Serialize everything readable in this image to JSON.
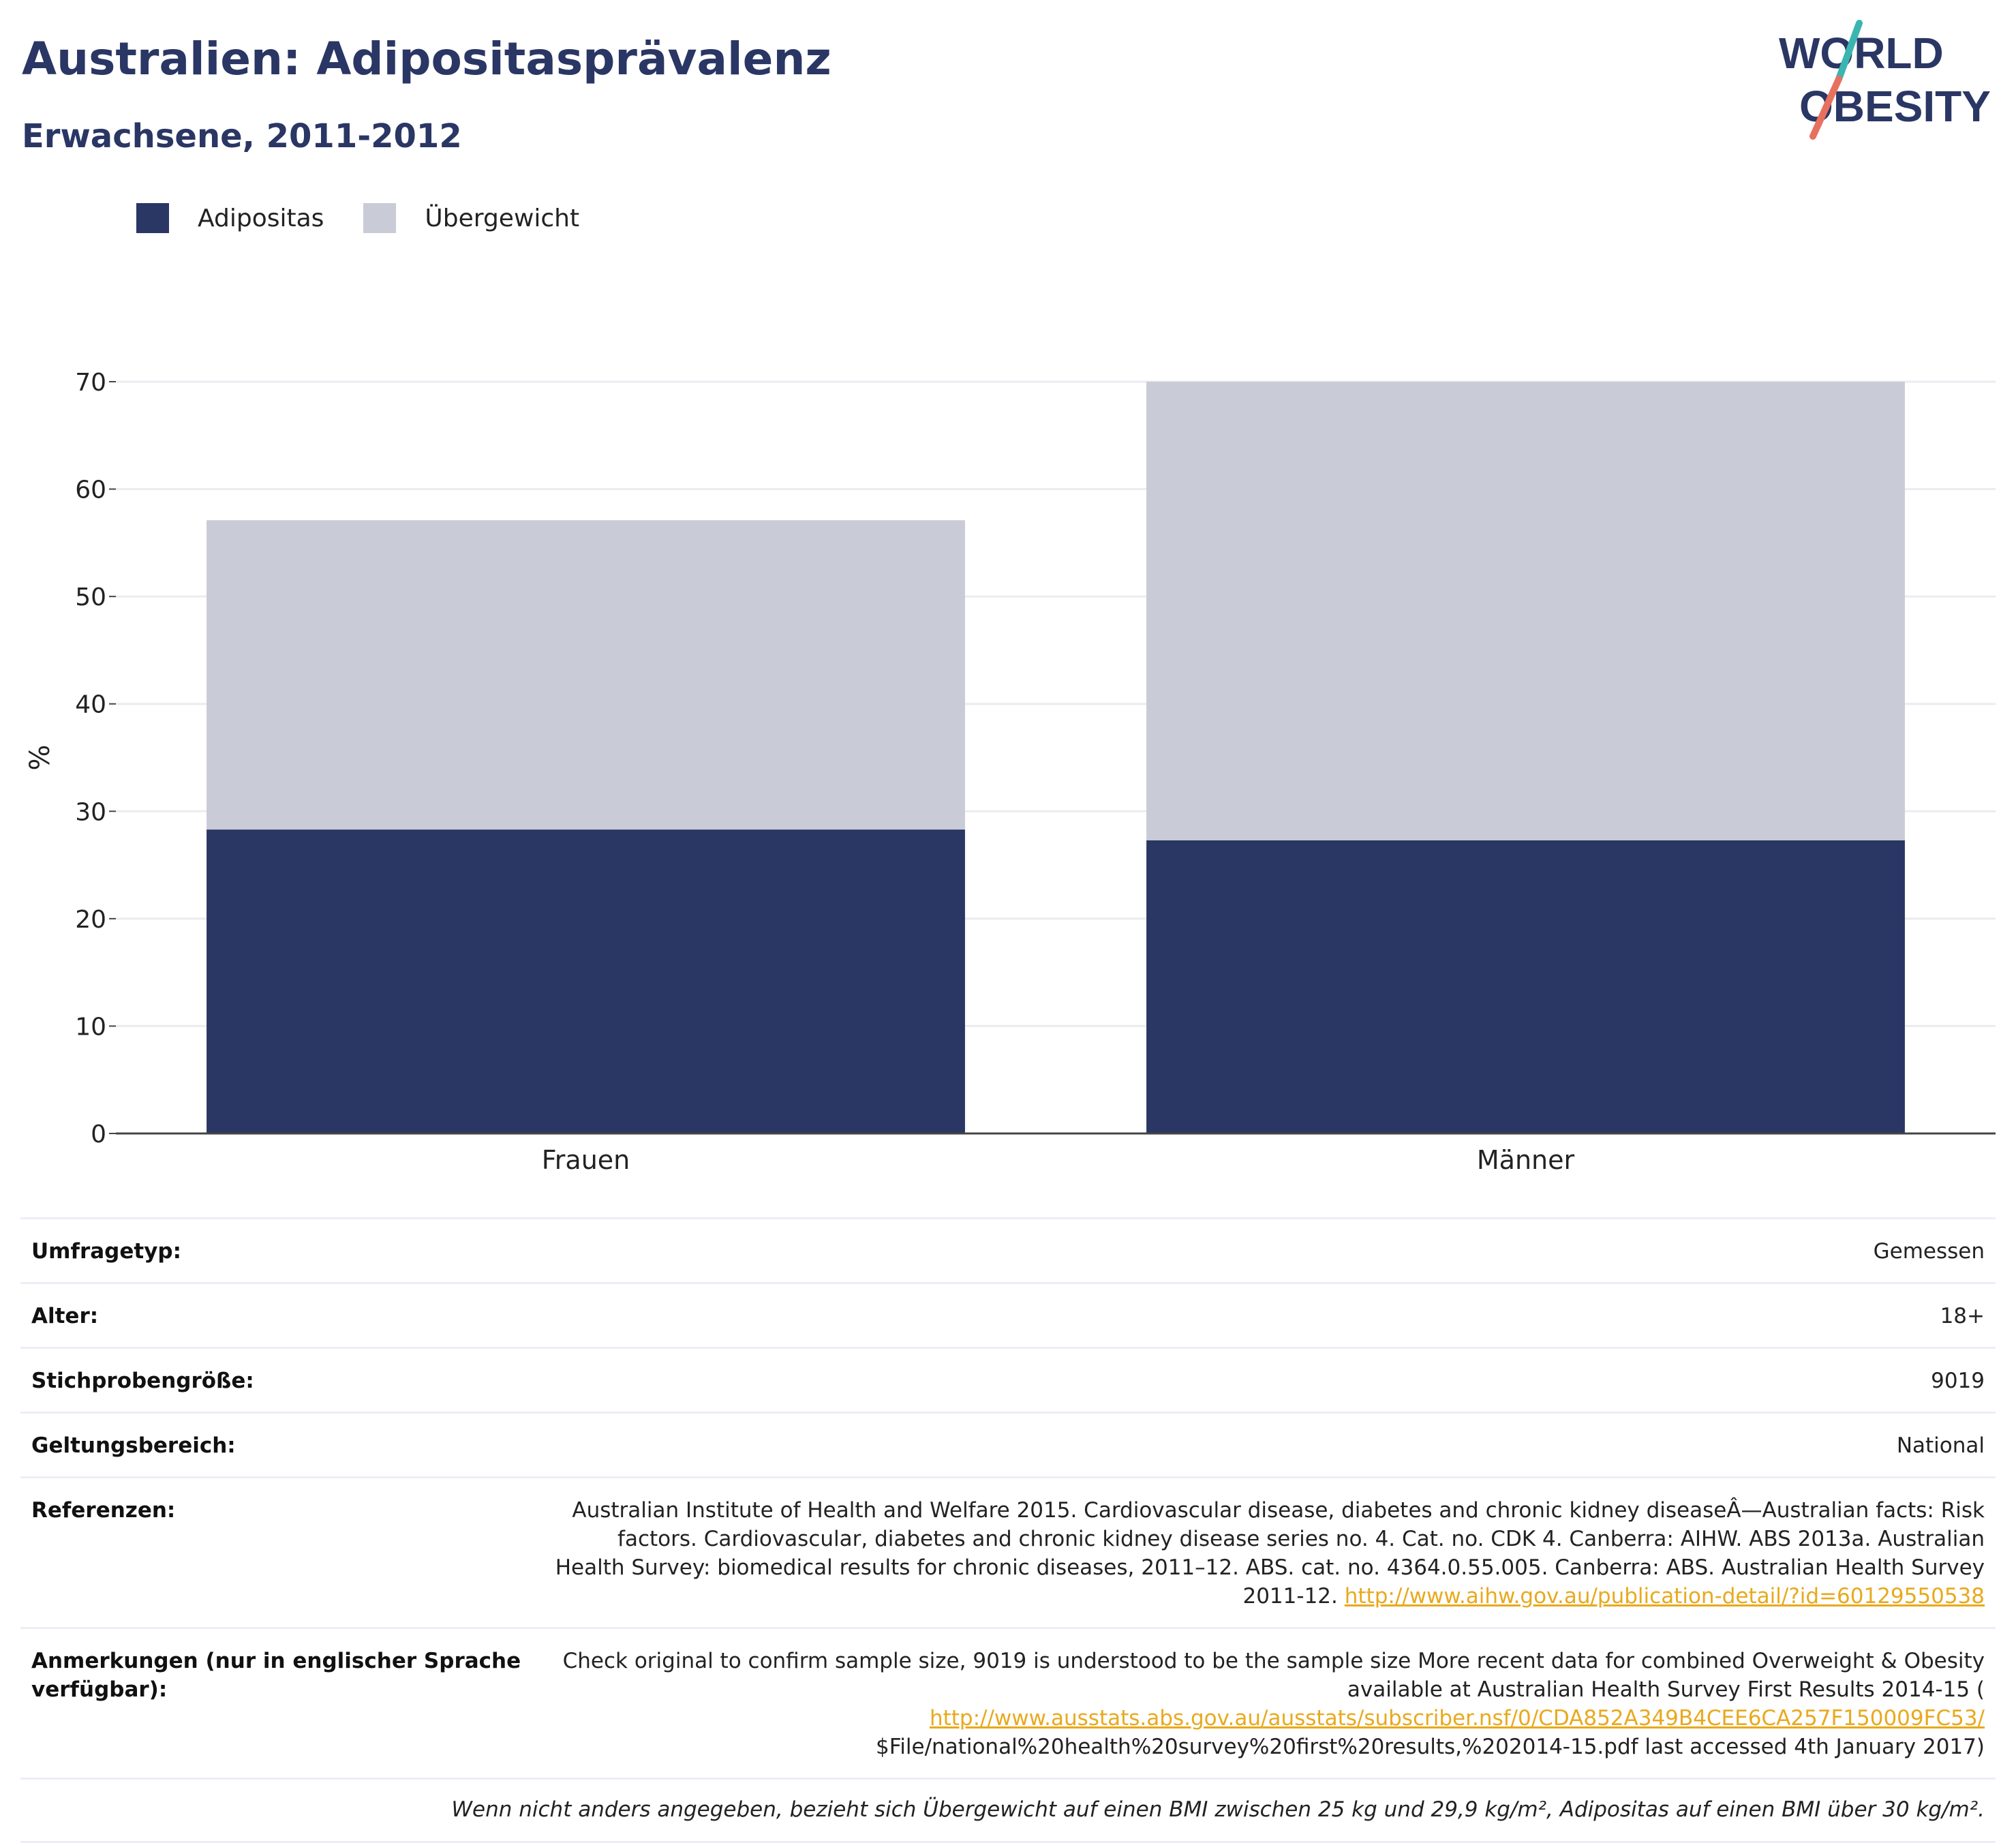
{
  "header": {
    "title": "Australien: Adipositasprävalenz",
    "subtitle": "Erwachsene, 2011-2012"
  },
  "logo": {
    "line1": "WORLD",
    "line2": "OBESITY",
    "colors": {
      "text": "#2a3664",
      "slash_top": "#3bb5b0",
      "slash_bottom": "#e8705f"
    }
  },
  "legend": [
    {
      "label": "Adipositas",
      "color": "#2a3664"
    },
    {
      "label": "Übergewicht",
      "color": "#c9cbd6"
    }
  ],
  "chart_data": {
    "type": "bar",
    "stacked": true,
    "categories": [
      "Frauen",
      "Männer"
    ],
    "series": [
      {
        "name": "Adipositas",
        "values": [
          28.3,
          27.3
        ],
        "color": "#2a3664"
      },
      {
        "name": "Übergewicht",
        "values": [
          28.8,
          42.7
        ],
        "color": "#c9cbd6"
      }
    ],
    "ylabel": "%",
    "ylim": [
      0,
      70
    ],
    "yticks": [
      0,
      10,
      20,
      30,
      40,
      50,
      60,
      70
    ],
    "grid": true,
    "legend_position": "top-left"
  },
  "meta": {
    "rows": [
      {
        "key": "Umfragetyp:",
        "value": "Gemessen"
      },
      {
        "key": "Alter:",
        "value": "18+"
      },
      {
        "key": "Stichprobengröße:",
        "value": "9019"
      },
      {
        "key": "Geltungsbereich:",
        "value": "National"
      }
    ],
    "references": {
      "key": "Referenzen:",
      "text": "Australian Institute of Health and Welfare 2015. Cardiovascular disease, diabetes and chronic kidney diseaseÂ—Australian facts: Risk factors. Cardiovascular, diabetes and chronic kidney disease series no. 4. Cat. no. CDK 4. Canberra: AIHW. ABS 2013a. Australian Health Survey: biomedical results for chronic diseases, 2011–12. ABS. cat. no. 4364.0.55.005. Canberra: ABS. Australian Health Survey 2011-12.",
      "link": "http://www.aihw.gov.au/publication-detail/?id=60129550538"
    },
    "notes": {
      "key": "Anmerkungen (nur in englischer Sprache verfügbar):",
      "text_before": "Check original to confirm sample size, 9019 is understood to be the sample size More recent data for combined Overweight & Obesity available at Australian Health Survey First Results 2014-15 (",
      "link": "http://www.ausstats.abs.gov.au/ausstats/subscriber.nsf/0/CDA852A349B4CEE6CA257F150009FC53/",
      "text_after": "$File/national%20health%20survey%20first%20results,%202014-15.pdf last accessed 4th January 2017)"
    },
    "footnote": "Wenn nicht anders angegeben, bezieht sich Übergewicht auf einen BMI zwischen 25 kg und 29,9 kg/m², Adipositas auf einen BMI über 30 kg/m²."
  }
}
